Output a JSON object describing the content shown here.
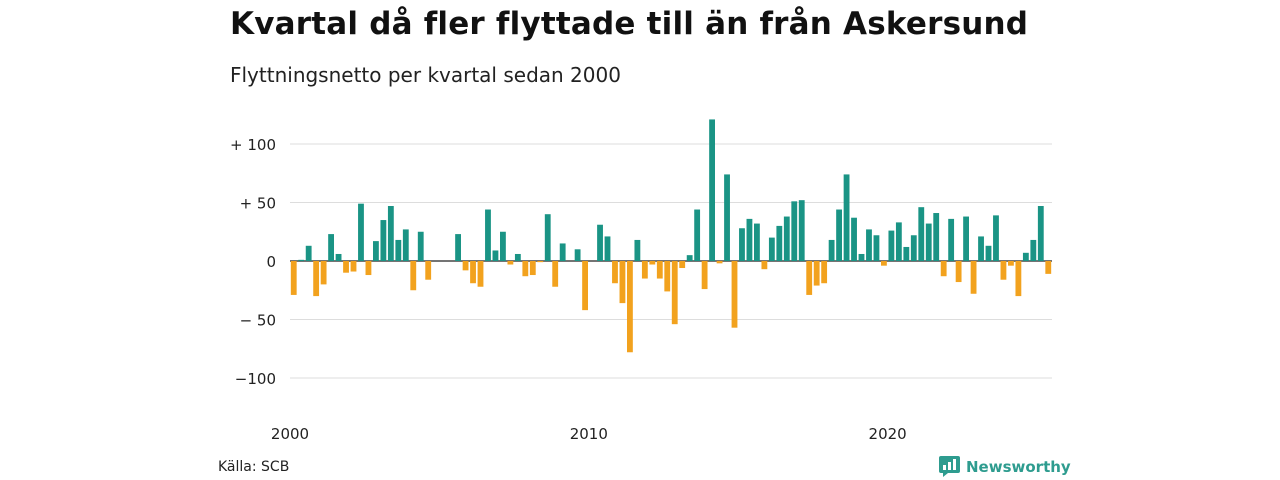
{
  "title": "Kvartal då fler flyttade till än från Askersund",
  "subtitle": "Flyttningsnetto per kvartal sedan 2000",
  "source": "Källa: SCB",
  "brand": "Newsworthy",
  "colors": {
    "positive": "#1a9485",
    "negative": "#f2a21e",
    "grid": "#dddddd",
    "brand": "#2e9c8f"
  },
  "chart_data": {
    "type": "bar",
    "start": "2000 Q1",
    "frequency": "quarterly",
    "xticks": [
      "2000",
      "2010",
      "2020"
    ],
    "yticks": [
      "+ 100",
      "+  50",
      "0",
      "− 50",
      "−100"
    ],
    "ylim": [
      -120,
      120
    ],
    "values": [
      -29,
      1,
      13,
      -30,
      -20,
      23,
      6,
      -10,
      -9,
      49,
      -12,
      17,
      35,
      47,
      18,
      27,
      -25,
      25,
      -16,
      0,
      0,
      0,
      23,
      -8,
      -19,
      -22,
      44,
      9,
      25,
      -3,
      6,
      -13,
      -12,
      -1,
      40,
      -22,
      15,
      0,
      10,
      -42,
      0,
      31,
      21,
      -19,
      -36,
      -78,
      18,
      -15,
      -3,
      -15,
      -26,
      -54,
      -6,
      5,
      44,
      -24,
      121,
      -2,
      74,
      -57,
      28,
      36,
      32,
      -7,
      20,
      30,
      38,
      51,
      52,
      -29,
      -21,
      -19,
      18,
      44,
      74,
      37,
      6,
      27,
      22,
      -4,
      26,
      33,
      12,
      22,
      46,
      32,
      41,
      -13,
      36,
      -18,
      38,
      -28,
      21,
      13,
      39,
      -16,
      -4,
      -30,
      7,
      18,
      47,
      -11
    ]
  }
}
